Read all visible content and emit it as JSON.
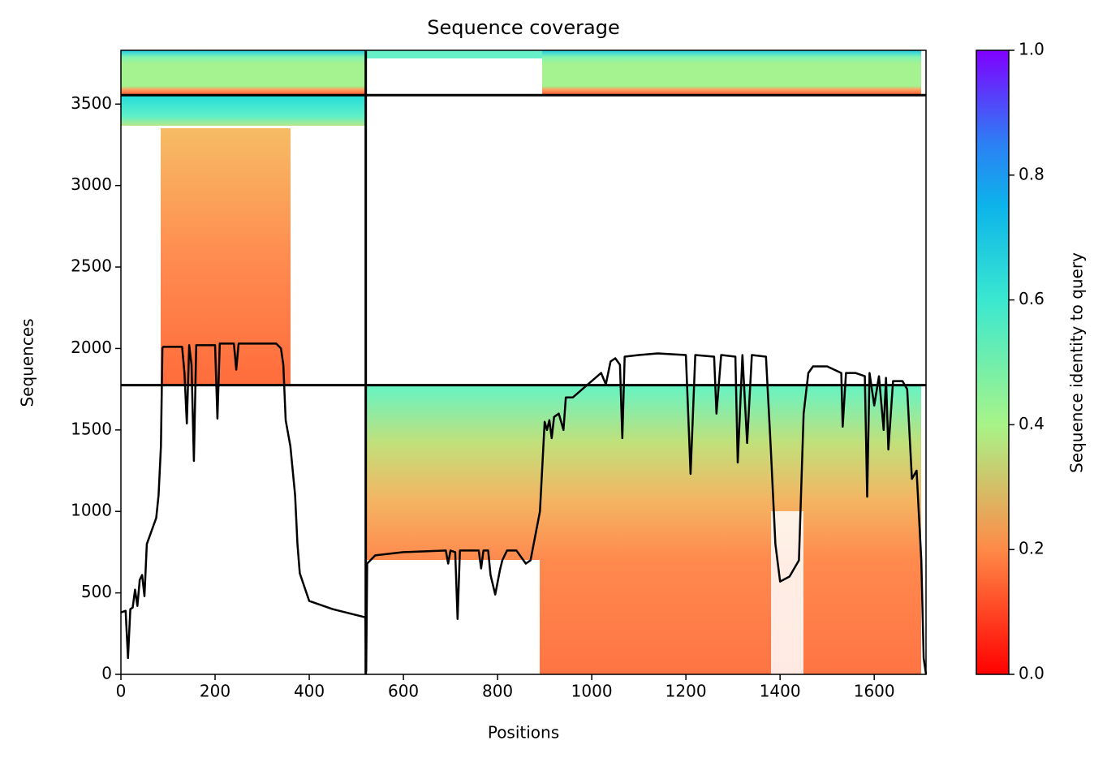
{
  "chart_data": {
    "type": "line",
    "title": "Sequence coverage",
    "xlabel": "Positions",
    "ylabel": "Sequences",
    "xlim": [
      0,
      1710
    ],
    "ylim": [
      0,
      3830
    ],
    "xticks": [
      0,
      200,
      400,
      600,
      800,
      1000,
      1200,
      1400,
      1600
    ],
    "yticks": [
      0,
      500,
      1000,
      1500,
      2000,
      2500,
      3000,
      3500
    ],
    "vlines": [
      520
    ],
    "hlines": [
      1775,
      3555
    ],
    "color": "#000000",
    "x": [
      0,
      10,
      15,
      20,
      25,
      30,
      35,
      40,
      45,
      50,
      55,
      65,
      75,
      80,
      85,
      88,
      90,
      130,
      135,
      140,
      145,
      150,
      155,
      160,
      200,
      205,
      210,
      240,
      245,
      250,
      330,
      340,
      345,
      350,
      360,
      370,
      375,
      380,
      400,
      450,
      519,
      521,
      523,
      540,
      600,
      690,
      695,
      700,
      710,
      715,
      720,
      760,
      765,
      770,
      780,
      785,
      795,
      805,
      810,
      820,
      840,
      860,
      870,
      880,
      890,
      900,
      905,
      910,
      915,
      920,
      930,
      940,
      945,
      960,
      980,
      1000,
      1020,
      1030,
      1040,
      1050,
      1060,
      1065,
      1070,
      1100,
      1140,
      1200,
      1210,
      1220,
      1260,
      1265,
      1275,
      1305,
      1310,
      1320,
      1330,
      1340,
      1370,
      1380,
      1390,
      1400,
      1420,
      1440,
      1450,
      1460,
      1470,
      1500,
      1530,
      1533,
      1540,
      1560,
      1580,
      1585,
      1590,
      1600,
      1610,
      1620,
      1625,
      1630,
      1640,
      1660,
      1670,
      1680,
      1690,
      1700,
      1705,
      1710
    ],
    "values": [
      380,
      390,
      100,
      400,
      410,
      520,
      420,
      580,
      610,
      480,
      800,
      880,
      960,
      1100,
      1400,
      2000,
      2010,
      2010,
      1850,
      1540,
      2020,
      1900,
      1310,
      2020,
      2020,
      1570,
      2030,
      2030,
      1870,
      2030,
      2030,
      2000,
      1900,
      1560,
      1400,
      1100,
      800,
      620,
      450,
      400,
      350,
      20,
      680,
      730,
      750,
      760,
      680,
      760,
      750,
      340,
      760,
      760,
      650,
      760,
      760,
      610,
      490,
      640,
      700,
      760,
      760,
      680,
      700,
      850,
      1000,
      1550,
      1500,
      1560,
      1450,
      1580,
      1600,
      1500,
      1700,
      1700,
      1750,
      1800,
      1850,
      1780,
      1920,
      1940,
      1900,
      1450,
      1950,
      1960,
      1970,
      1960,
      1230,
      1960,
      1950,
      1600,
      1960,
      1950,
      1300,
      1960,
      1420,
      1960,
      1950,
      1400,
      800,
      570,
      600,
      700,
      1600,
      1850,
      1890,
      1890,
      1850,
      1520,
      1850,
      1850,
      1830,
      1090,
      1850,
      1650,
      1830,
      1500,
      1820,
      1380,
      1800,
      1800,
      1750,
      1200,
      1250,
      700,
      100,
      0
    ],
    "colorbar": {
      "label": "Sequence identity to query",
      "lim": [
        0,
        1
      ],
      "ticks": [
        {
          "value": 0,
          "label": "0.0"
        },
        {
          "value": 0.2,
          "label": "0.2"
        },
        {
          "value": 0.4,
          "label": "0.4"
        },
        {
          "value": 0.6,
          "label": "0.6"
        },
        {
          "value": 0.8,
          "label": "0.8"
        },
        {
          "value": 1,
          "label": "1.0"
        }
      ]
    }
  }
}
